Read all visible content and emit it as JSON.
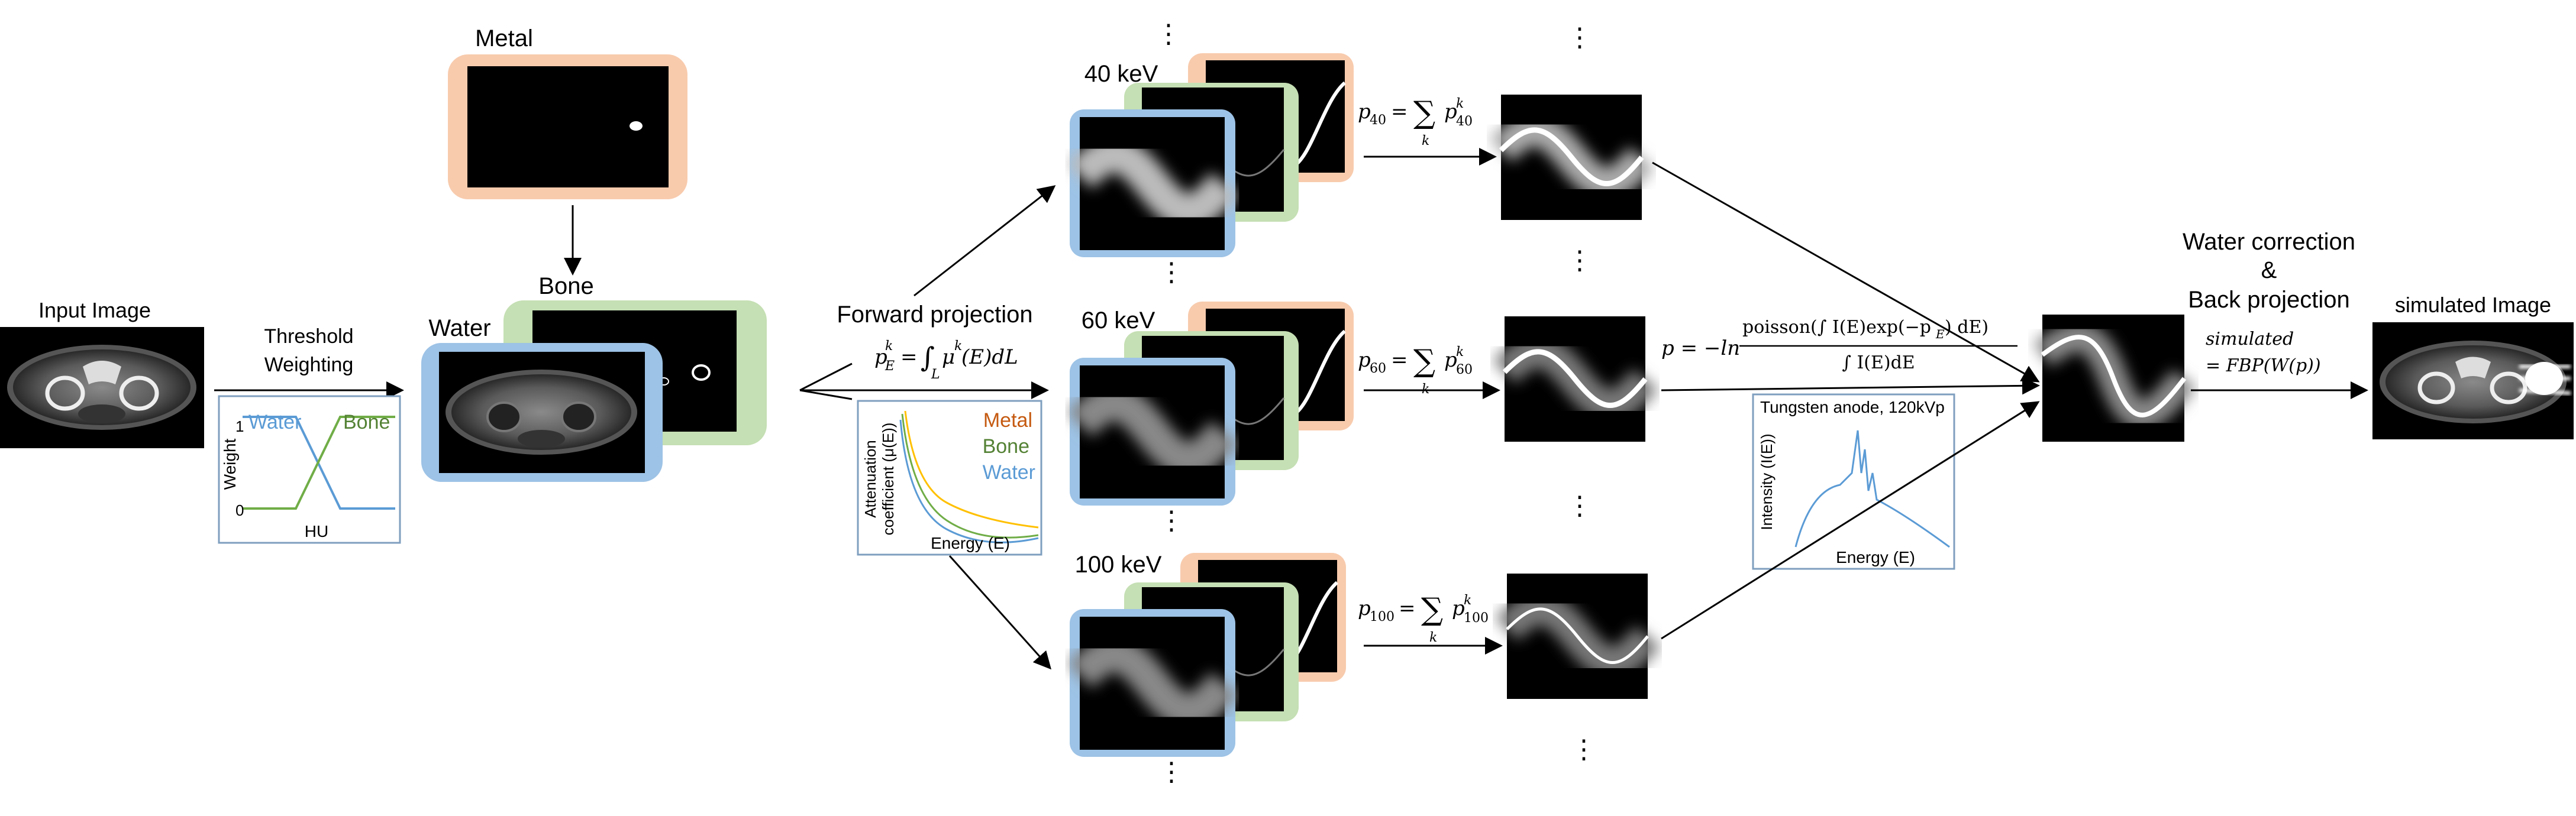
{
  "input": {
    "label": "Input Image"
  },
  "threshold": {
    "label_line1": "Threshold",
    "label_line2": "Weighting",
    "legend_water": "Water",
    "legend_bone": "Bone",
    "ylabel": "Weight",
    "ytick_top": "1",
    "ytick_bottom": "0",
    "xlabel": "HU"
  },
  "materials": {
    "metal": "Metal",
    "bone": "Bone",
    "water": "Water"
  },
  "forward_projection": {
    "title": "Forward projection",
    "eq_lhs_var": "p",
    "eq_lhs_sub": "E",
    "eq_lhs_sup": "k",
    "eq_eq": "=",
    "eq_int": "∫",
    "eq_int_sub": "L",
    "eq_mu": "μ",
    "eq_mu_sup": "k",
    "eq_rest": "(E)dL"
  },
  "attenuation_plot": {
    "legend_metal": "Metal",
    "legend_bone": "Bone",
    "legend_water": "Water",
    "ylabel_line1": "Attenuation",
    "ylabel_line2": "coefficient (μ(E))",
    "xlabel": "Energy (E)"
  },
  "energies": [
    {
      "label": "40 keV",
      "sum_lhs": "p",
      "sum_sub": "40",
      "sum_var": "p",
      "sum_var_sub": "40",
      "sum_var_sup": "k"
    },
    {
      "label": "60 keV",
      "sum_lhs": "p",
      "sum_sub": "60",
      "sum_var": "p",
      "sum_var_sub": "60",
      "sum_var_sup": "k"
    },
    {
      "label": "100 keV",
      "sum_lhs": "p",
      "sum_sub": "100",
      "sum_var": "p",
      "sum_var_sub": "100",
      "sum_var_sup": "k"
    }
  ],
  "sum_symbol": "∑",
  "sum_index": "k",
  "sum_eq": "=",
  "ellipsis": "⋮",
  "poisson_eq": {
    "lhs": "p = −ln",
    "numerator": "poisson(∫ I(E)exp(−p",
    "numerator_sub": "E",
    "numerator_end": ") dE)",
    "denominator": "∫ I(E)dE"
  },
  "spectrum_plot": {
    "title": "Tungsten anode, 120kVp",
    "ylabel": "Intensity (I(E))",
    "xlabel": "Energy (E)"
  },
  "water_correction": {
    "line1": "Water correction",
    "line2": "&",
    "line3": "Back projection"
  },
  "output": {
    "label": "simulated Image",
    "eq_line1": "simulated",
    "eq_line2": "= FBP(W(p))"
  },
  "colors": {
    "metal_frame": "#f8cbad",
    "bone_frame": "#c5e0b4",
    "water_frame": "#9dc3e6",
    "water_line": "#5b9bd5",
    "bone_line": "#70ad47",
    "metal_text": "#c55a11",
    "bone_text": "#548235",
    "water_text": "#5b9bd5",
    "metal_curve": "#ffc000",
    "plot_border": "#7f9fbf"
  }
}
